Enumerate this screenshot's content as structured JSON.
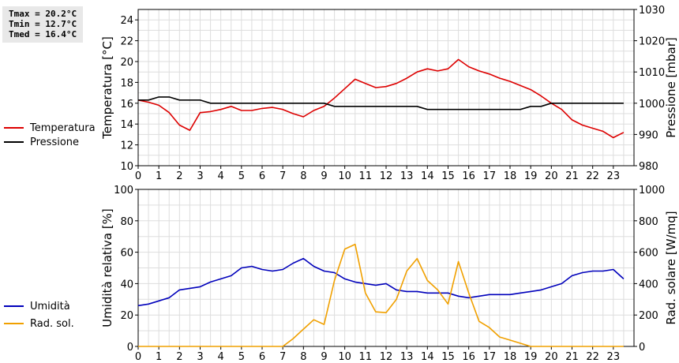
{
  "stats": {
    "tmax": "Tmax = 20.2°C",
    "tmin": "Tmin = 12.7°C",
    "tmed": "Tmed = 16.4°C"
  },
  "chart_data": [
    {
      "type": "line",
      "xlabel": "",
      "x_ticks": [
        "0",
        "1",
        "2",
        "3",
        "4",
        "5",
        "6",
        "7",
        "8",
        "9",
        "10",
        "11",
        "12",
        "13",
        "14",
        "15",
        "16",
        "17",
        "18",
        "19",
        "20",
        "21",
        "22",
        "23"
      ],
      "xlim": [
        0,
        24
      ],
      "ylabel": "Temperatura [°C]",
      "ylim": [
        10,
        25
      ],
      "y_ticks": [
        10,
        12,
        14,
        16,
        18,
        20,
        22,
        24
      ],
      "y2label": "Pressione [mbar]",
      "y2lim": [
        980,
        1030
      ],
      "y2_ticks": [
        980,
        990,
        1000,
        1010,
        1020,
        1030
      ],
      "grid": true,
      "legend_position": "left",
      "series": [
        {
          "name": "Temperatura",
          "color": "#dd0000",
          "axis": "left",
          "x": [
            0,
            0.5,
            1,
            1.5,
            2,
            2.5,
            3,
            3.5,
            4,
            4.5,
            5,
            5.5,
            6,
            6.5,
            7,
            7.5,
            8,
            8.5,
            9,
            9.5,
            10,
            10.5,
            11,
            11.5,
            12,
            12.5,
            13,
            13.5,
            14,
            14.5,
            15,
            15.5,
            16,
            16.5,
            17,
            17.5,
            18,
            18.5,
            19,
            19.5,
            20,
            20.5,
            21,
            21.5,
            22,
            22.5,
            23,
            23.5
          ],
          "values": [
            16.3,
            16.1,
            15.8,
            15.1,
            13.9,
            13.4,
            15.1,
            15.2,
            15.4,
            15.7,
            15.3,
            15.3,
            15.5,
            15.6,
            15.4,
            15.0,
            14.7,
            15.3,
            15.7,
            16.5,
            17.4,
            18.3,
            17.9,
            17.5,
            17.6,
            17.9,
            18.4,
            19.0,
            19.3,
            19.1,
            19.3,
            20.2,
            19.5,
            19.1,
            18.8,
            18.4,
            18.1,
            17.7,
            17.3,
            16.7,
            16.0,
            15.4,
            14.4,
            13.9,
            13.6,
            13.3,
            12.7,
            13.2
          ]
        },
        {
          "name": "Pressione",
          "color": "#000000",
          "axis": "right",
          "x": [
            0,
            0.5,
            1,
            1.5,
            2,
            2.5,
            3,
            3.5,
            4,
            4.5,
            5,
            5.5,
            6,
            6.5,
            7,
            7.5,
            8,
            8.5,
            9,
            9.5,
            10,
            10.5,
            11,
            11.5,
            12,
            12.5,
            13,
            13.5,
            14,
            14.5,
            15,
            15.5,
            16,
            16.5,
            17,
            17.5,
            18,
            18.5,
            19,
            19.5,
            20,
            20.5,
            21,
            21.5,
            22,
            22.5,
            23,
            23.5
          ],
          "values": [
            1001,
            1001,
            1002,
            1002,
            1001,
            1001,
            1001,
            1000,
            1000,
            1000,
            1000,
            1000,
            1000,
            1000,
            1000,
            1000,
            1000,
            1000,
            1000,
            999,
            999,
            999,
            999,
            999,
            999,
            999,
            999,
            999,
            998,
            998,
            998,
            998,
            998,
            998,
            998,
            998,
            998,
            998,
            999,
            999,
            1000,
            1000,
            1000,
            1000,
            1000,
            1000,
            1000,
            1000
          ]
        }
      ]
    },
    {
      "type": "line",
      "xlabel": "",
      "x_ticks": [
        "0",
        "1",
        "2",
        "3",
        "4",
        "5",
        "6",
        "7",
        "8",
        "9",
        "10",
        "11",
        "12",
        "13",
        "14",
        "15",
        "16",
        "17",
        "18",
        "19",
        "20",
        "21",
        "22",
        "23"
      ],
      "xlim": [
        0,
        24
      ],
      "ylabel": "Umidità relativa [%]",
      "ylim": [
        0,
        100
      ],
      "y_ticks": [
        0,
        20,
        40,
        60,
        80,
        100
      ],
      "y2label": "Rad. solare [W/mq]",
      "y2lim": [
        0,
        1000
      ],
      "y2_ticks": [
        0,
        200,
        400,
        600,
        800,
        1000
      ],
      "grid": true,
      "legend_position": "left",
      "series": [
        {
          "name": "Umidità",
          "color": "#0000bb",
          "axis": "left",
          "x": [
            0,
            0.5,
            1,
            1.5,
            2,
            2.5,
            3,
            3.5,
            4,
            4.5,
            5,
            5.5,
            6,
            6.5,
            7,
            7.5,
            8,
            8.5,
            9,
            9.5,
            10,
            10.5,
            11,
            11.5,
            12,
            12.5,
            13,
            13.5,
            14,
            14.5,
            15,
            15.5,
            16,
            16.5,
            17,
            17.5,
            18,
            18.5,
            19,
            19.5,
            20,
            20.5,
            21,
            21.5,
            22,
            22.5,
            23,
            23.5
          ],
          "values": [
            26,
            27,
            29,
            31,
            36,
            37,
            38,
            41,
            43,
            45,
            50,
            51,
            49,
            48,
            49,
            53,
            56,
            51,
            48,
            47,
            43,
            41,
            40,
            39,
            40,
            36,
            35,
            35,
            34,
            34,
            34,
            32,
            31,
            32,
            33,
            33,
            33,
            34,
            35,
            36,
            38,
            40,
            45,
            47,
            48,
            48,
            49,
            43
          ]
        },
        {
          "name": "Rad. sol.",
          "color": "#f0a000",
          "axis": "right",
          "x": [
            0,
            0.5,
            1,
            1.5,
            2,
            2.5,
            3,
            3.5,
            4,
            4.5,
            5,
            5.5,
            6,
            6.5,
            7,
            7.5,
            8,
            8.5,
            9,
            9.5,
            10,
            10.5,
            11,
            11.5,
            12,
            12.5,
            13,
            13.5,
            14,
            14.5,
            15,
            15.5,
            16,
            16.5,
            17,
            17.5,
            18,
            18.5,
            19,
            19.5,
            20,
            20.5,
            21,
            21.5,
            22,
            22.5,
            23,
            23.5
          ],
          "values": [
            0,
            0,
            0,
            0,
            0,
            0,
            0,
            0,
            0,
            0,
            0,
            0,
            0,
            0,
            0,
            50,
            110,
            170,
            140,
            420,
            620,
            650,
            340,
            220,
            215,
            300,
            480,
            560,
            420,
            360,
            270,
            540,
            340,
            160,
            120,
            60,
            40,
            20,
            0,
            0,
            0,
            0,
            0,
            0,
            0,
            0,
            0,
            0
          ]
        }
      ]
    }
  ]
}
